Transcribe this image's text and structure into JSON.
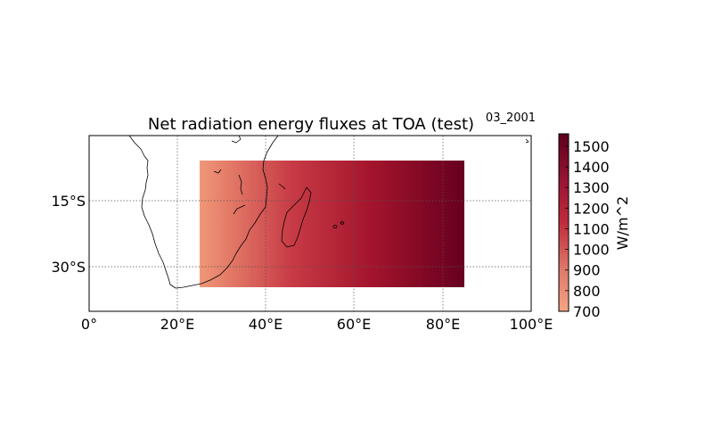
{
  "title": "Net radiation energy fluxes at TOA (test)",
  "subtitle": "03_2001",
  "colorbar": {
    "label": "W/m^2",
    "ticks": [
      "700",
      "800",
      "900",
      "1000",
      "1100",
      "1200",
      "1300",
      "1400",
      "1500"
    ],
    "colors": [
      "#f4a582",
      "#e0796a",
      "#c94a4f",
      "#b2182b",
      "#8c1030",
      "#67001f"
    ]
  },
  "map": {
    "lon_labels": [
      "0°",
      "20°E",
      "40°E",
      "60°E",
      "80°E",
      "100°E"
    ],
    "lat_labels": [
      "15°S",
      "30°S"
    ],
    "gridlines": true,
    "coastline_color": "#000000"
  },
  "chart_data": {
    "type": "heatmap",
    "title": "Net radiation energy fluxes at TOA (test)",
    "subtitle": "03_2001",
    "xlim": [
      0,
      100
    ],
    "ylim": [
      -40,
      0
    ],
    "field": {
      "lon_range": [
        25,
        85
      ],
      "lat_range": [
        -35,
        -6
      ],
      "value_range": [
        700,
        1550
      ],
      "gradient": "increasing eastward"
    },
    "xticks": [
      0,
      20,
      40,
      60,
      80,
      100
    ],
    "yticks": [
      -15,
      -30
    ],
    "colorbar_range": [
      700,
      1560
    ],
    "colorbar_label": "W/m^2"
  }
}
